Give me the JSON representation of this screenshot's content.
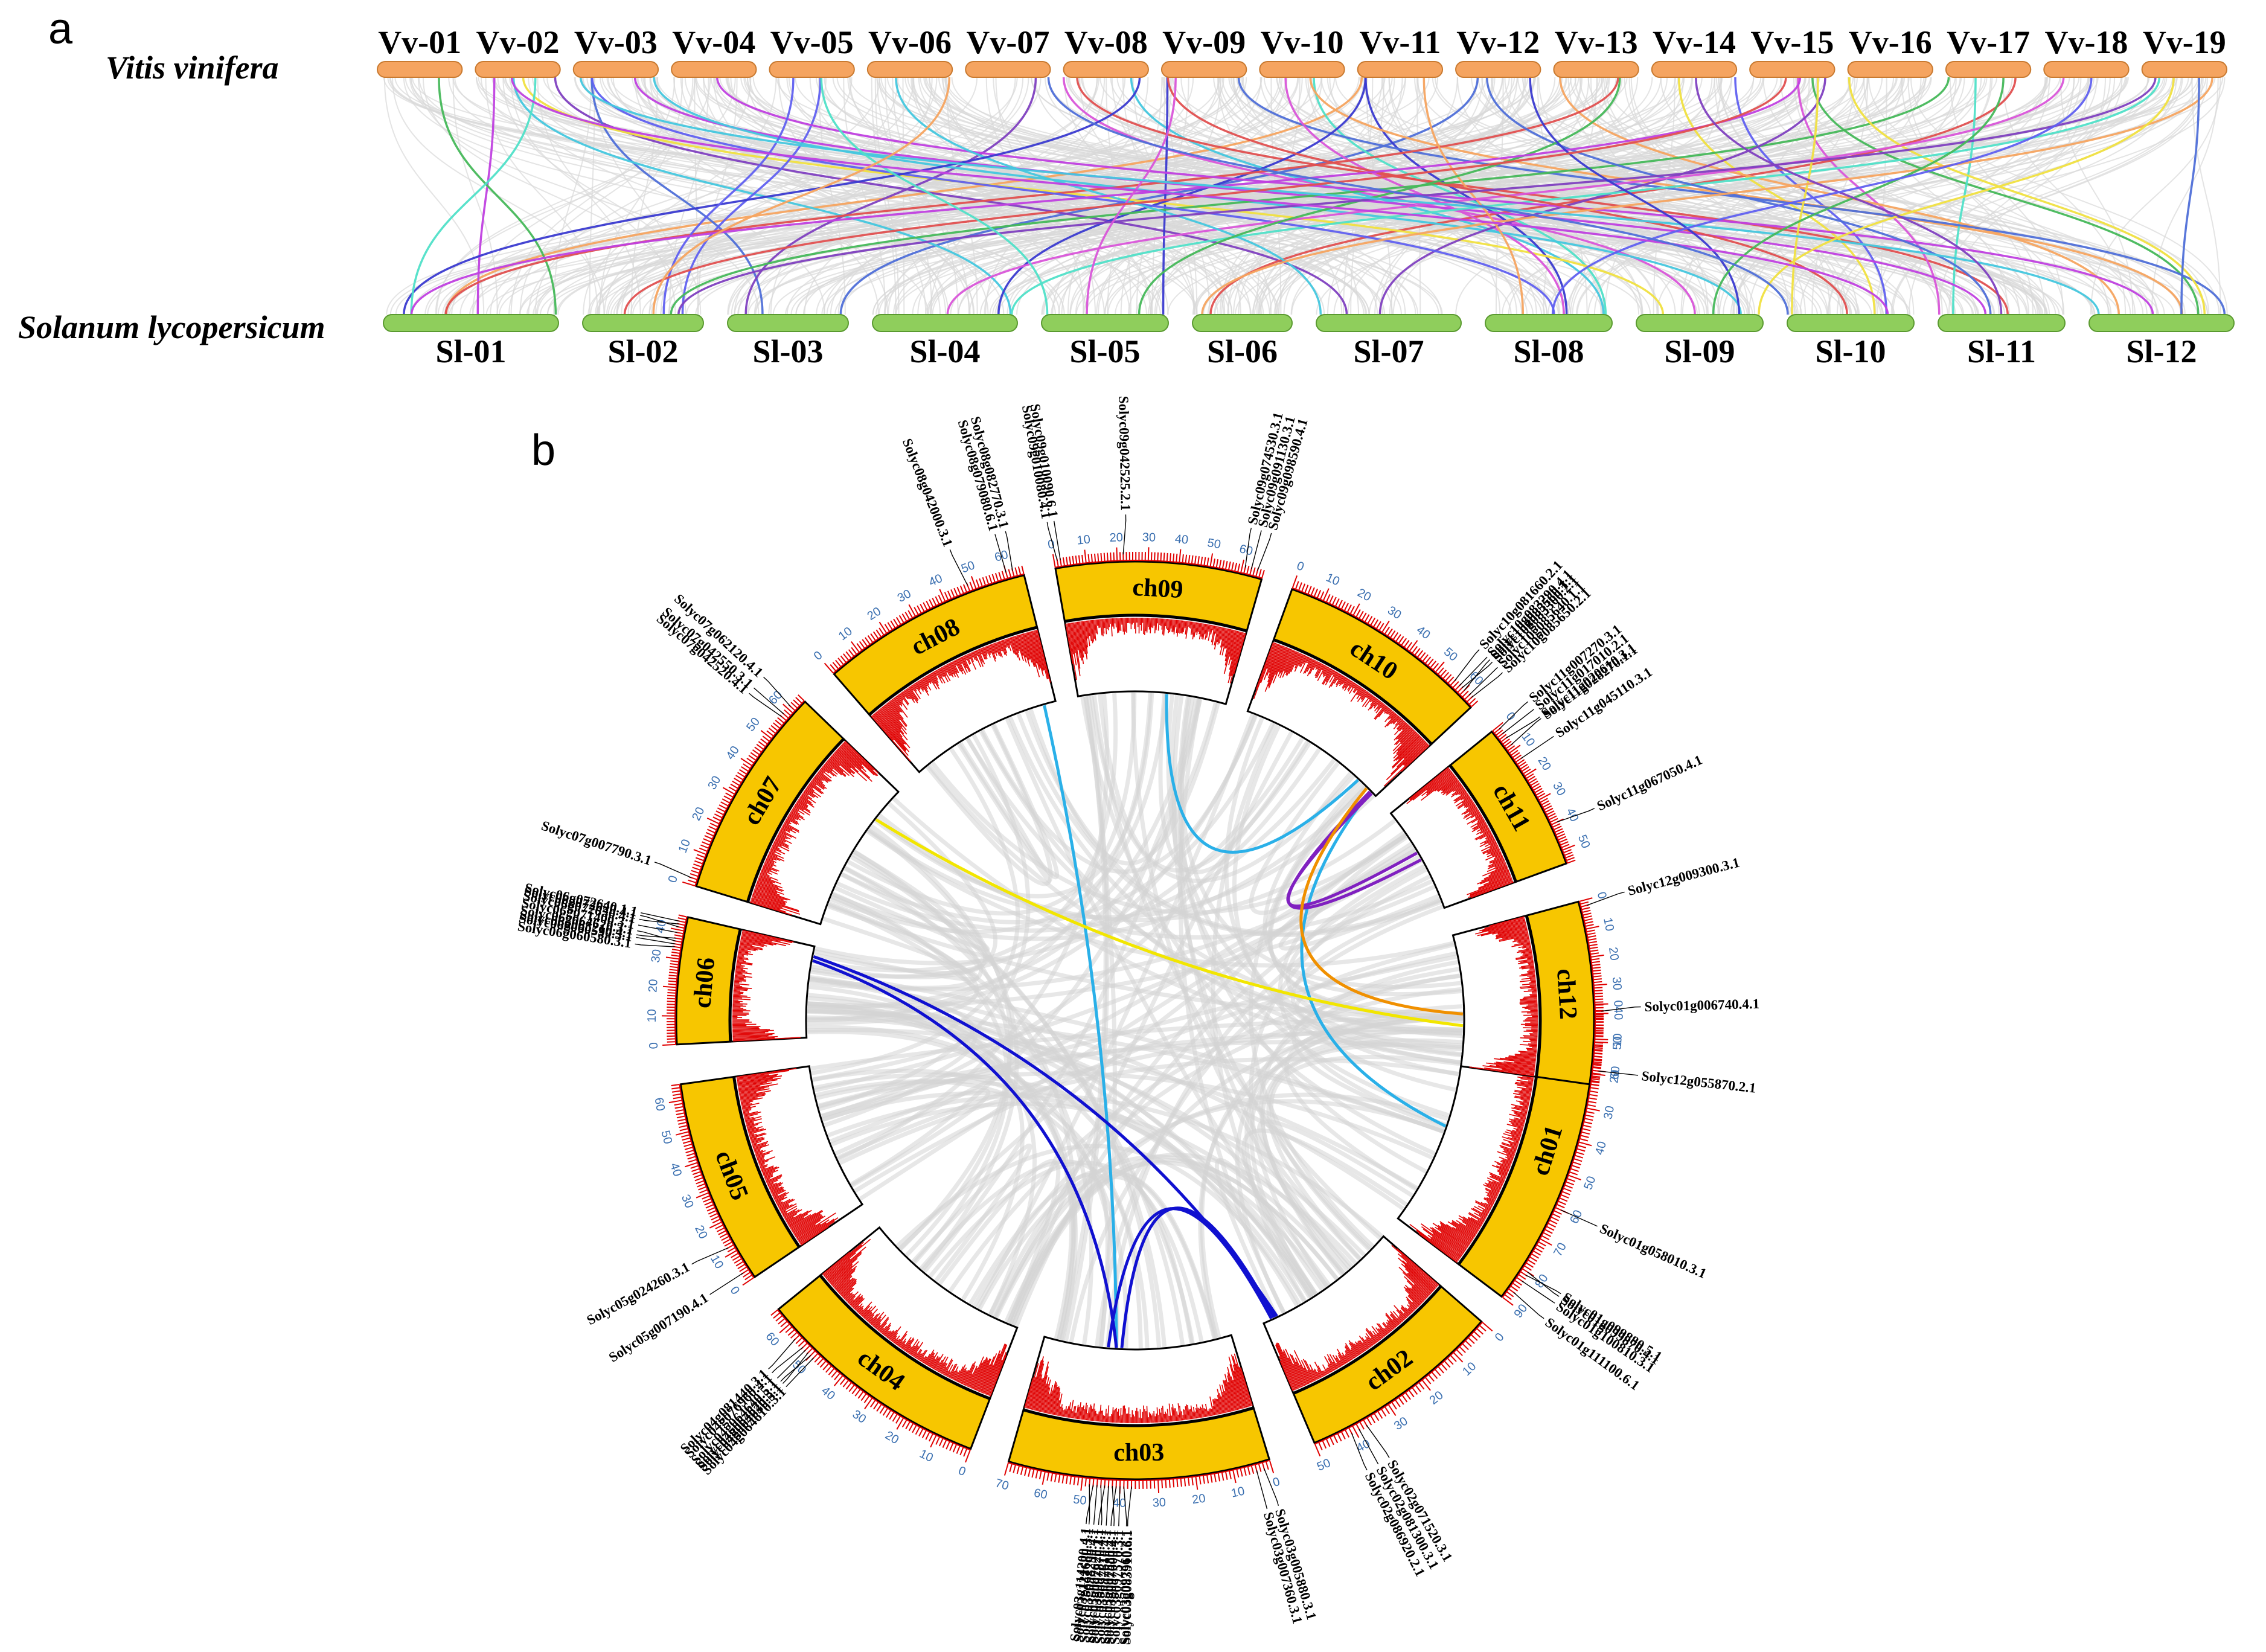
{
  "panel_a": {
    "label": "a",
    "top_species": "Vitis vinifera",
    "bottom_species": "Solanum lycopersicum",
    "top_color": "#f5a460",
    "bottom_color": "#8fce5c",
    "bg_link_color": "#d8d8d8",
    "vv_chromosomes": [
      "Vv-01",
      "Vv-02",
      "Vv-03",
      "Vv-04",
      "Vv-05",
      "Vv-06",
      "Vv-07",
      "Vv-08",
      "Vv-09",
      "Vv-10",
      "Vv-11",
      "Vv-12",
      "Vv-13",
      "Vv-14",
      "Vv-15",
      "Vv-16",
      "Vv-17",
      "Vv-18",
      "Vv-19"
    ],
    "sl_chromosomes": [
      "Sl-01",
      "Sl-02",
      "Sl-03",
      "Sl-04",
      "Sl-05",
      "Sl-06",
      "Sl-07",
      "Sl-08",
      "Sl-09",
      "Sl-10",
      "Sl-11",
      "Sl-12"
    ],
    "link_colors": [
      "#f5a460",
      "#4f6fd8",
      "#d955d9",
      "#45c7de",
      "#3a3ad0",
      "#e05050",
      "#46b85a",
      "#f0e040",
      "#8040c0",
      "#50e0c8",
      "#6060f0",
      "#c040e0"
    ]
  },
  "panel_b": {
    "label": "b",
    "chromosomes": [
      {
        "name": "ch01",
        "length": 90
      },
      {
        "name": "ch02",
        "length": 50
      },
      {
        "name": "ch03",
        "length": 70
      },
      {
        "name": "ch04",
        "length": 65
      },
      {
        "name": "ch05",
        "length": 65
      },
      {
        "name": "ch06",
        "length": 45
      },
      {
        "name": "ch07",
        "length": 65
      },
      {
        "name": "ch08",
        "length": 65
      },
      {
        "name": "ch09",
        "length": 67
      },
      {
        "name": "ch10",
        "length": 65
      },
      {
        "name": "ch11",
        "length": 55
      },
      {
        "name": "ch12",
        "length": 65
      }
    ],
    "chrom_color": "#f7c600",
    "density_color": "#e00000",
    "tick_color": "#e00000",
    "ticklabel_color": "#3a6fb0",
    "background_link_color": "#d4d4d4",
    "genes": [
      {
        "label": "Solyc01g006740.4.1",
        "chr": 0,
        "pos": 2
      },
      {
        "label": "Solyc01g058010.3.1",
        "chr": 0,
        "pos": 60
      },
      {
        "label": "Solyc01g099870.4.1",
        "chr": 0,
        "pos": 80
      },
      {
        "label": "Solyc01g099880.5.1",
        "chr": 0,
        "pos": 81
      },
      {
        "label": "Solyc01g100810.3.1",
        "chr": 0,
        "pos": 83
      },
      {
        "label": "Solyc01g111100.6.1",
        "chr": 0,
        "pos": 87
      },
      {
        "label": "Solyc02g071520.3.1",
        "chr": 1,
        "pos": 37
      },
      {
        "label": "Solyc02g081300.3.1",
        "chr": 1,
        "pos": 39
      },
      {
        "label": "Solyc02g086920.2.1",
        "chr": 1,
        "pos": 41
      },
      {
        "label": "Solyc03g005880.3.1",
        "chr": 2,
        "pos": 2
      },
      {
        "label": "Solyc03g007360.3.1",
        "chr": 2,
        "pos": 4
      },
      {
        "label": "Solyc03g083910.6.1",
        "chr": 2,
        "pos": 37
      },
      {
        "label": "Solyc03g097560.3.1",
        "chr": 2,
        "pos": 39
      },
      {
        "label": "Solyc03g097570.3.1",
        "chr": 2,
        "pos": 40
      },
      {
        "label": "Solyc03g097580.4.1",
        "chr": 2,
        "pos": 41
      },
      {
        "label": "Solyc03g097600.4.1",
        "chr": 2,
        "pos": 42
      },
      {
        "label": "Solyc03g097610.4.1",
        "chr": 2,
        "pos": 43
      },
      {
        "label": "Solyc03g097620.1.1",
        "chr": 2,
        "pos": 44
      },
      {
        "label": "Solyc03g097870.4.1",
        "chr": 2,
        "pos": 45
      },
      {
        "label": "Solyc03g098290.4.1",
        "chr": 2,
        "pos": 46
      },
      {
        "label": "Solyc03g114200.4.1",
        "chr": 2,
        "pos": 47
      },
      {
        "label": "Solyc03g121680.3.1",
        "chr": 2,
        "pos": 48
      },
      {
        "label": "Solyc04g064610.3.1",
        "chr": 3,
        "pos": 49
      },
      {
        "label": "Solyc04g064620.3.1",
        "chr": 3,
        "pos": 50
      },
      {
        "label": "Solyc04g064630.5.1",
        "chr": 3,
        "pos": 51
      },
      {
        "label": "Solyc04g064640.5.1",
        "chr": 3,
        "pos": 52
      },
      {
        "label": "Solyc04g076960.4.1",
        "chr": 3,
        "pos": 53
      },
      {
        "label": "Solyc04g081440.3.1",
        "chr": 3,
        "pos": 56
      },
      {
        "label": "Solyc05g007190.4.1",
        "chr": 4,
        "pos": 3
      },
      {
        "label": "Solyc05g024260.3.1",
        "chr": 4,
        "pos": 12
      },
      {
        "label": "Solyc06g060580.3.1",
        "chr": 5,
        "pos": 34
      },
      {
        "label": "Solyc06g060590.3.1",
        "chr": 5,
        "pos": 35
      },
      {
        "label": "Solyc06g064620.3.1",
        "chr": 5,
        "pos": 36
      },
      {
        "label": "Solyc06g065210.4.1",
        "chr": 5,
        "pos": 37
      },
      {
        "label": "Solyc06g071400.3.1",
        "chr": 5,
        "pos": 39
      },
      {
        "label": "Solyc06g072620.4.1",
        "chr": 5,
        "pos": 41
      },
      {
        "label": "Solyc06g072630.4.1",
        "chr": 5,
        "pos": 42
      },
      {
        "label": "Solyc06g072640.1.1",
        "chr": 5,
        "pos": 43
      },
      {
        "label": "Solyc07g007790.3.1",
        "chr": 6,
        "pos": 2
      },
      {
        "label": "Solyc07g042520.4.1",
        "chr": 6,
        "pos": 57
      },
      {
        "label": "Solyc07g042550.3.1",
        "chr": 6,
        "pos": 58
      },
      {
        "label": "Solyc07g062120.4.1",
        "chr": 6,
        "pos": 61
      },
      {
        "label": "Solyc08g042000.3.1",
        "chr": 7,
        "pos": 48
      },
      {
        "label": "Solyc08g079080.6.1",
        "chr": 7,
        "pos": 60
      },
      {
        "label": "Solyc08g082770.3.1",
        "chr": 7,
        "pos": 62
      },
      {
        "label": "Solyc09g010080.4.1",
        "chr": 8,
        "pos": 1
      },
      {
        "label": "Solyc09g010090.6.1",
        "chr": 8,
        "pos": 2
      },
      {
        "label": "Solyc09g042525.2.1",
        "chr": 8,
        "pos": 22
      },
      {
        "label": "Solyc09g074530.3.1",
        "chr": 8,
        "pos": 61
      },
      {
        "label": "Solyc09g091130.3.1",
        "chr": 8,
        "pos": 63
      },
      {
        "label": "Solyc09g098590.4.1",
        "chr": 8,
        "pos": 65
      },
      {
        "label": "Solyc10g081660.2.1",
        "chr": 9,
        "pos": 56
      },
      {
        "label": "Solyc10g083290.4.1",
        "chr": 9,
        "pos": 58
      },
      {
        "label": "Solyc10g083300.2.1",
        "chr": 9,
        "pos": 59
      },
      {
        "label": "Solyc10g085560.1.1",
        "chr": 9,
        "pos": 60
      },
      {
        "label": "Solyc10g085640.1.1",
        "chr": 9,
        "pos": 62
      },
      {
        "label": "Solyc10g085650.2.1",
        "chr": 9,
        "pos": 63
      },
      {
        "label": "Solyc11g007270.3.1",
        "chr": 10,
        "pos": 1
      },
      {
        "label": "Solyc11g017010.2.1",
        "chr": 10,
        "pos": 3
      },
      {
        "label": "Solyc11g020610.3.1",
        "chr": 10,
        "pos": 5
      },
      {
        "label": "Solyc11g028270.1.1",
        "chr": 10,
        "pos": 8
      },
      {
        "label": "Solyc11g045110.3.1",
        "chr": 10,
        "pos": 14
      },
      {
        "label": "Solyc11g067050.4.1",
        "chr": 10,
        "pos": 40
      },
      {
        "label": "Solyc12g009300.3.1",
        "chr": 11,
        "pos": 2
      },
      {
        "label": "Solyc12g055870.2.1",
        "chr": 11,
        "pos": 60
      }
    ],
    "links": [
      {
        "a": {
          "chr": 8,
          "pos": 40
        },
        "b": {
          "chr": 9,
          "pos": 55
        },
        "color": "#2ab0e8"
      },
      {
        "a": {
          "chr": 7,
          "pos": 60
        },
        "b": {
          "chr": 2,
          "pos": 43
        },
        "color": "#2ab0e8"
      },
      {
        "a": {
          "chr": 9,
          "pos": 62
        },
        "b": {
          "chr": 0,
          "pos": 48
        },
        "color": "#2ab0e8"
      },
      {
        "a": {
          "chr": 9,
          "pos": 63
        },
        "b": {
          "chr": 10,
          "pos": 24
        },
        "color": "#8020c0"
      },
      {
        "a": {
          "chr": 9,
          "pos": 62
        },
        "b": {
          "chr": 10,
          "pos": 28
        },
        "color": "#8020c0"
      },
      {
        "a": {
          "chr": 6,
          "pos": 50
        },
        "b": {
          "chr": 11,
          "pos": 45
        },
        "color": "#f2e600"
      },
      {
        "a": {
          "chr": 9,
          "pos": 60
        },
        "b": {
          "chr": 0,
          "pos": 2
        },
        "color": "#f09000"
      },
      {
        "a": {
          "chr": 5,
          "pos": 38
        },
        "b": {
          "chr": 2,
          "pos": 43
        },
        "color": "#1010d0"
      },
      {
        "a": {
          "chr": 5,
          "pos": 40
        },
        "b": {
          "chr": 1,
          "pos": 45
        },
        "color": "#1010d0"
      },
      {
        "a": {
          "chr": 2,
          "pos": 46
        },
        "b": {
          "chr": 1,
          "pos": 47
        },
        "color": "#1010d0"
      },
      {
        "a": {
          "chr": 2,
          "pos": 41
        },
        "b": {
          "chr": 1,
          "pos": 46
        },
        "color": "#1010d0"
      }
    ]
  }
}
